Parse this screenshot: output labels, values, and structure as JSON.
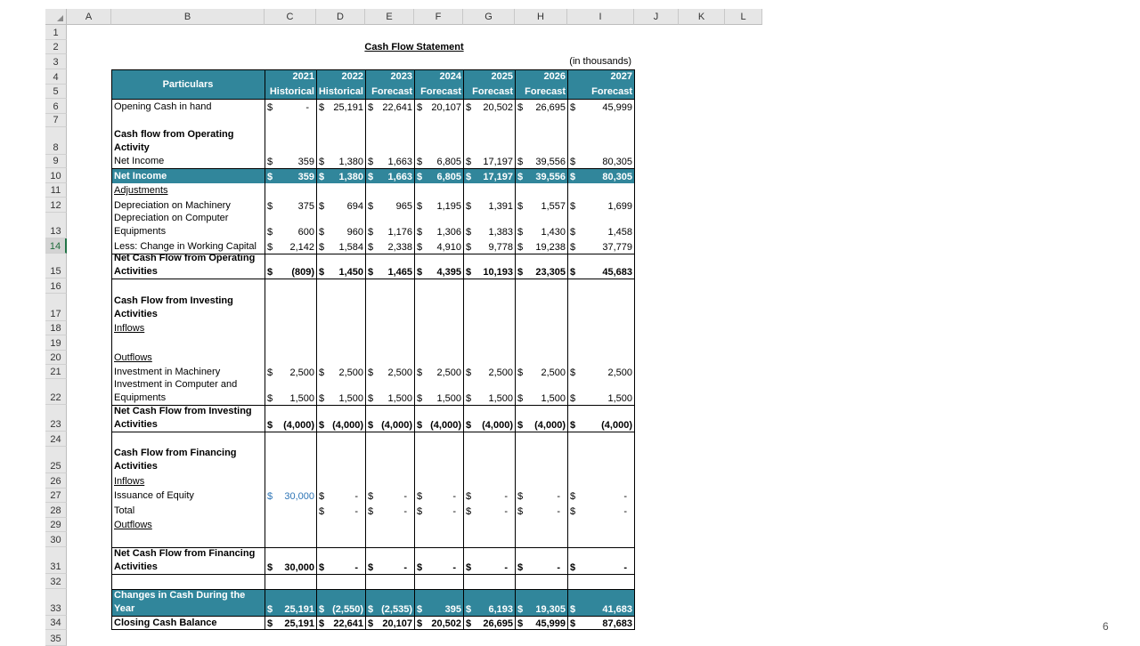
{
  "title": "Cash Flow Statement",
  "units_note": "(in thousands)",
  "page_number": "6",
  "column_letters": [
    "A",
    "B",
    "C",
    "D",
    "E",
    "F",
    "G",
    "H",
    "I",
    "J",
    "K",
    "L"
  ],
  "row_numbers": [
    "1",
    "2",
    "3",
    "4",
    "5",
    "6",
    "7",
    "8",
    "9",
    "10",
    "11",
    "12",
    "13",
    "14",
    "15",
    "16",
    "17",
    "18",
    "19",
    "20",
    "21",
    "22",
    "23",
    "24",
    "25",
    "26",
    "27",
    "28",
    "29",
    "30",
    "31",
    "32",
    "33",
    "34",
    "35"
  ],
  "selected_row": "14",
  "header": {
    "particulars": "Particulars",
    "years": [
      "2021",
      "2022",
      "2023",
      "2024",
      "2025",
      "2026",
      "2027"
    ],
    "types": [
      "Historical",
      "Historical",
      "Forecast",
      "Forecast",
      "Forecast",
      "Forecast",
      "Forecast"
    ]
  },
  "rows": [
    {
      "row": 6,
      "label": "Opening Cash in hand",
      "values": [
        "-",
        "25,191",
        "22,641",
        "20,107",
        "20,502",
        "26,695",
        "45,999"
      ]
    },
    {
      "row": 8,
      "label": "Cash flow from Operating Activity",
      "bold": true
    },
    {
      "row": 9,
      "label": "Net Income",
      "values": [
        "359",
        "1,380",
        "1,663",
        "6,805",
        "17,197",
        "39,556",
        "80,305"
      ]
    },
    {
      "row": 10,
      "label": "Net Income",
      "bold": true,
      "highlight": true,
      "values": [
        "359",
        "1,380",
        "1,663",
        "6,805",
        "17,197",
        "39,556",
        "80,305"
      ]
    },
    {
      "row": 11,
      "label": "Adjustments",
      "underline": true
    },
    {
      "row": 12,
      "label": "Depreciation on Machinery",
      "values": [
        "375",
        "694",
        "965",
        "1,195",
        "1,391",
        "1,557",
        "1,699"
      ]
    },
    {
      "row": 13,
      "label": "Depreciation on Computer Equipments",
      "values": [
        "600",
        "960",
        "1,176",
        "1,306",
        "1,383",
        "1,430",
        "1,458"
      ]
    },
    {
      "row": 14,
      "label": "Less: Change in Working Capital",
      "values": [
        "2,142",
        "1,584",
        "2,338",
        "4,910",
        "9,778",
        "19,238",
        "37,779"
      ]
    },
    {
      "row": 15,
      "label": "Net Cash Flow from Operating Activities",
      "bold": true,
      "values": [
        "(809)",
        "1,450",
        "1,465",
        "4,395",
        "10,193",
        "23,305",
        "45,683"
      ]
    },
    {
      "row": 17,
      "label": "Cash Flow from Investing Activities",
      "bold": true
    },
    {
      "row": 18,
      "label": "Inflows",
      "underline": true
    },
    {
      "row": 20,
      "label": "Outflows",
      "underline": true
    },
    {
      "row": 21,
      "label": "Investment in Machinery",
      "values": [
        "2,500",
        "2,500",
        "2,500",
        "2,500",
        "2,500",
        "2,500",
        "2,500"
      ]
    },
    {
      "row": 22,
      "label": "Investment in Computer and Equipments",
      "values": [
        "1,500",
        "1,500",
        "1,500",
        "1,500",
        "1,500",
        "1,500",
        "1,500"
      ]
    },
    {
      "row": 23,
      "label": "Net Cash Flow from Investing Activities",
      "bold": true,
      "values": [
        "(4,000)",
        "(4,000)",
        "(4,000)",
        "(4,000)",
        "(4,000)",
        "(4,000)",
        "(4,000)"
      ]
    },
    {
      "row": 25,
      "label": "Cash Flow from Financing Activities",
      "bold": true
    },
    {
      "row": 26,
      "label": "Inflows",
      "underline": true
    },
    {
      "row": 27,
      "label": "Issuance of Equity",
      "input_first": true,
      "values": [
        "30,000",
        "-",
        "-",
        "-",
        "-",
        "-",
        "-"
      ]
    },
    {
      "row": 28,
      "label": "Total",
      "values": [
        "",
        "-",
        "-",
        "-",
        "-",
        "-",
        "-"
      ]
    },
    {
      "row": 29,
      "label": "Outflows",
      "underline": true
    },
    {
      "row": 31,
      "label": "Net Cash Flow from Financing Activities",
      "bold": true,
      "values": [
        "30,000",
        "-",
        "-",
        "-",
        "-",
        "-",
        "-"
      ]
    },
    {
      "row": 33,
      "label": "Changes in Cash During the Year",
      "bold": true,
      "highlight": true,
      "values": [
        "25,191",
        "(2,550)",
        "(2,535)",
        "395",
        "6,193",
        "19,305",
        "41,683"
      ]
    },
    {
      "row": 34,
      "label": "Closing Cash Balance",
      "bold": true,
      "values": [
        "25,191",
        "22,641",
        "20,107",
        "20,502",
        "26,695",
        "45,999",
        "87,683"
      ]
    }
  ],
  "colors": {
    "header_teal": "#31869b",
    "input_blue": "#2e75b6",
    "grid_header": "#e6e6e6"
  }
}
